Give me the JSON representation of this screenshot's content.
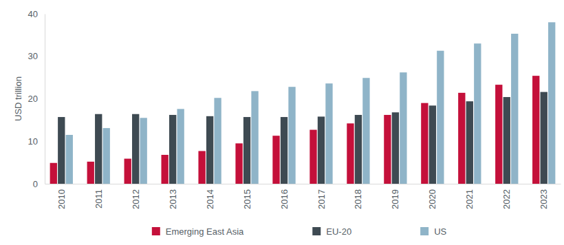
{
  "chart_data": {
    "type": "bar",
    "y_label": "USD trillion",
    "categories": [
      "2010",
      "2011",
      "2012",
      "2013",
      "2014",
      "2015",
      "2016",
      "2017",
      "2018",
      "2019",
      "2020",
      "2021",
      "2022",
      "2023"
    ],
    "series": [
      {
        "name": "Emerging East Asia",
        "color": "#c4103a",
        "values": [
          4.9,
          5.2,
          5.9,
          6.8,
          7.7,
          9.5,
          11.3,
          12.7,
          14.2,
          16.2,
          19.0,
          21.4,
          23.3,
          25.4
        ]
      },
      {
        "name": "EU-20",
        "color": "#3e4a52",
        "values": [
          15.7,
          16.4,
          16.4,
          16.2,
          15.9,
          15.7,
          15.7,
          15.8,
          16.2,
          16.8,
          18.4,
          19.4,
          20.4,
          21.6
        ]
      },
      {
        "name": "US",
        "color": "#8fb4c8",
        "values": [
          11.5,
          13.1,
          15.5,
          17.6,
          20.2,
          21.8,
          22.8,
          23.6,
          24.9,
          26.2,
          31.3,
          33.0,
          35.3,
          38.0
        ]
      }
    ],
    "ylim": [
      0,
      40
    ],
    "yticks": [
      0,
      10,
      20,
      30,
      40
    ],
    "grid": false,
    "legend": "bottom"
  }
}
